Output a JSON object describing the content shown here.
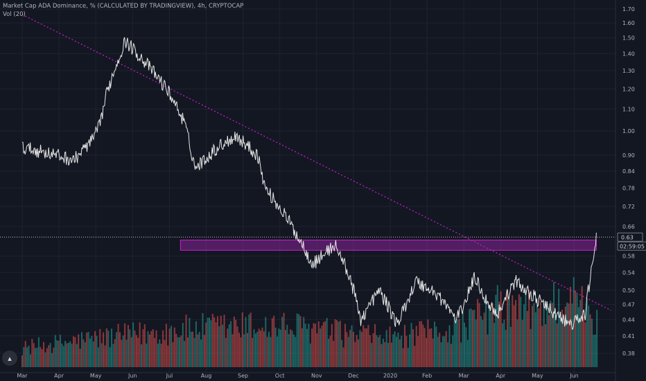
{
  "header": {
    "title": "Market Cap ADA Dominance, % (CALCULATED BY TRADINGVIEW), 4h, CRYPTOCAP",
    "indicator": "Vol (20)"
  },
  "logo_icon": "tradingview-logo-icon",
  "colors": {
    "background": "#131722",
    "grid": "#1f2330",
    "price_line": "#e8e8e8",
    "trendline": "#d21ed2",
    "zone_fill": "#9c27b0",
    "zone_border": "#d21ed2",
    "volume_up": "#26a69a",
    "volume_down": "#ef5350",
    "axis_text": "#b2b5be"
  },
  "chart_data": {
    "type": "line",
    "y_scale": "log",
    "y_ticks": [
      "1.70",
      "1.60",
      "1.50",
      "1.40",
      "1.30",
      "1.20",
      "1.10",
      "1.00",
      "0.90",
      "0.84",
      "0.78",
      "0.72",
      "0.66",
      "0.58",
      "0.54",
      "0.50",
      "0.47",
      "0.44",
      "0.41",
      "0.38"
    ],
    "x_ticks": [
      "Mar",
      "Apr",
      "May",
      "Jun",
      "Jul",
      "Aug",
      "Sep",
      "Oct",
      "Nov",
      "Dec",
      "2020",
      "Feb",
      "Mar",
      "Apr",
      "May",
      "Jun"
    ],
    "last_price": "0.63",
    "countdown": "02:59:05",
    "series": [
      {
        "x": [
          0,
          0.7,
          1.4,
          1.9,
          2.1,
          2.3,
          2.8,
          3.3,
          4.0,
          4.4,
          4.7,
          5.3,
          5.8,
          6.4,
          6.6,
          7.1,
          7.5,
          7.9,
          8.5,
          8.9,
          9.2,
          9.7,
          10.2,
          10.7,
          11.3,
          11.8,
          12.0,
          12.3,
          12.6,
          12.9,
          13.4,
          14.0,
          14.5,
          14.9,
          15.3,
          15.6
        ],
        "y": [
          0.93,
          0.91,
          0.88,
          0.96,
          1.02,
          1.18,
          1.48,
          1.36,
          1.18,
          1.04,
          0.85,
          0.93,
          0.98,
          0.9,
          0.78,
          0.7,
          0.63,
          0.56,
          0.61,
          0.53,
          0.44,
          0.5,
          0.43,
          0.52,
          0.49,
          0.44,
          0.47,
          0.53,
          0.48,
          0.45,
          0.52,
          0.48,
          0.45,
          0.43,
          0.45,
          0.63
        ]
      }
    ],
    "volume": [
      {
        "x": [
          0,
          1.9,
          3.3,
          4.7,
          6.6,
          7.9,
          8.9,
          10.2,
          11.8,
          12.9,
          14.0,
          14.9,
          15.6
        ],
        "v": [
          1.5,
          2.2,
          2.6,
          3.0,
          3.2,
          3.0,
          2.5,
          2.3,
          3.0,
          4.6,
          4.4,
          5.6,
          3.4
        ]
      }
    ],
    "annotations": [
      {
        "type": "trendline",
        "x": [
          0,
          16.0
        ],
        "y": [
          1.66,
          0.458
        ]
      },
      {
        "type": "zone",
        "x": [
          4.3,
          15.6
        ],
        "y": [
          0.595,
          0.622
        ]
      }
    ]
  }
}
